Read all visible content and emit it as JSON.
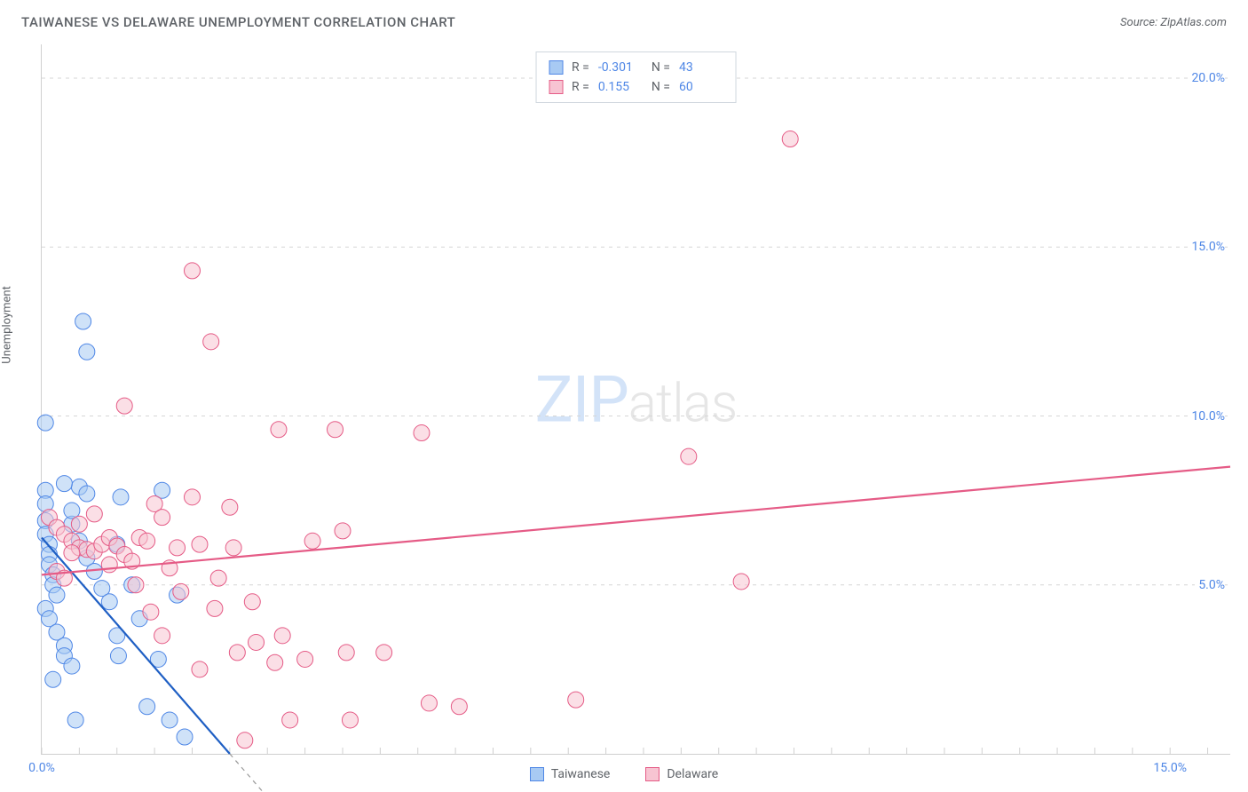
{
  "title": "TAIWANESE VS DELAWARE UNEMPLOYMENT CORRELATION CHART",
  "source_text": "Source: ZipAtlas.com",
  "ylabel": "Unemployment",
  "watermark": {
    "left": "ZIP",
    "right": "atlas"
  },
  "chart": {
    "type": "scatter",
    "background_color": "#ffffff",
    "grid_color": "#d6d6d6",
    "axis_color": "#d0d0d0",
    "label_color": "#5f6368",
    "tick_label_color": "#4f87e6",
    "xlim": [
      0,
      15.8
    ],
    "ylim": [
      0,
      21
    ],
    "x_ticks": [
      0,
      15
    ],
    "y_ticks": [
      5,
      10,
      15,
      20
    ],
    "x_tick_labels": [
      "0.0%",
      "15.0%"
    ],
    "y_tick_labels": [
      "5.0%",
      "10.0%",
      "15.0%",
      "20.0%"
    ],
    "x_minor_step": 0.5,
    "marker_radius": 9,
    "marker_opacity": 0.55,
    "reg_line_width": 2.2,
    "series": [
      {
        "name": "Taiwanese",
        "fill": "#a8caf3",
        "stroke": "#4f87e6",
        "reg_color": "#1f5fc4",
        "reg_dash_extend": true,
        "R": "-0.301",
        "N": "43",
        "regression": {
          "x0": 0,
          "y0": 6.4,
          "x1": 2.5,
          "y1": 0
        },
        "points": [
          [
            0.05,
            7.8
          ],
          [
            0.05,
            7.4
          ],
          [
            0.05,
            6.9
          ],
          [
            0.05,
            6.5
          ],
          [
            0.1,
            6.2
          ],
          [
            0.1,
            5.9
          ],
          [
            0.1,
            5.6
          ],
          [
            0.15,
            5.3
          ],
          [
            0.15,
            5.0
          ],
          [
            0.2,
            4.7
          ],
          [
            0.05,
            4.3
          ],
          [
            0.1,
            4.0
          ],
          [
            0.2,
            3.6
          ],
          [
            0.3,
            3.2
          ],
          [
            0.3,
            2.9
          ],
          [
            0.4,
            2.6
          ],
          [
            0.15,
            2.2
          ],
          [
            0.5,
            7.9
          ],
          [
            0.6,
            7.7
          ],
          [
            0.4,
            6.8
          ],
          [
            0.5,
            6.3
          ],
          [
            0.6,
            5.8
          ],
          [
            0.7,
            5.4
          ],
          [
            0.8,
            4.9
          ],
          [
            0.9,
            4.5
          ],
          [
            1.0,
            3.5
          ],
          [
            1.2,
            5.0
          ],
          [
            1.3,
            4.0
          ],
          [
            1.05,
            7.6
          ],
          [
            1.02,
            2.9
          ],
          [
            1.0,
            6.2
          ],
          [
            1.4,
            1.4
          ],
          [
            1.55,
            2.8
          ],
          [
            1.6,
            7.8
          ],
          [
            1.7,
            1.0
          ],
          [
            1.8,
            4.7
          ],
          [
            1.9,
            0.5
          ],
          [
            0.45,
            1.0
          ],
          [
            0.05,
            9.8
          ],
          [
            0.6,
            11.9
          ],
          [
            0.55,
            12.8
          ],
          [
            0.4,
            7.2
          ],
          [
            0.3,
            8.0
          ]
        ]
      },
      {
        "name": "Delaware",
        "fill": "#f7c4d2",
        "stroke": "#e55b86",
        "reg_color": "#e55b86",
        "reg_dash_extend": false,
        "R": "0.155",
        "N": "60",
        "regression": {
          "x0": 0,
          "y0": 5.3,
          "x1": 15.8,
          "y1": 8.5
        },
        "points": [
          [
            0.1,
            7.0
          ],
          [
            0.2,
            6.7
          ],
          [
            0.3,
            6.5
          ],
          [
            0.4,
            6.3
          ],
          [
            0.5,
            6.1
          ],
          [
            0.6,
            6.05
          ],
          [
            0.7,
            6.0
          ],
          [
            0.8,
            6.2
          ],
          [
            0.9,
            6.4
          ],
          [
            1.0,
            6.15
          ],
          [
            1.1,
            5.9
          ],
          [
            1.2,
            5.7
          ],
          [
            1.3,
            6.4
          ],
          [
            1.4,
            6.3
          ],
          [
            1.5,
            7.4
          ],
          [
            1.6,
            7.0
          ],
          [
            1.7,
            5.5
          ],
          [
            1.8,
            6.1
          ],
          [
            1.85,
            4.8
          ],
          [
            2.0,
            7.6
          ],
          [
            2.1,
            6.2
          ],
          [
            2.3,
            4.3
          ],
          [
            2.35,
            5.2
          ],
          [
            2.5,
            7.3
          ],
          [
            2.55,
            6.1
          ],
          [
            2.6,
            3.0
          ],
          [
            2.7,
            0.4
          ],
          [
            2.8,
            4.5
          ],
          [
            2.85,
            3.3
          ],
          [
            3.1,
            2.7
          ],
          [
            3.15,
            9.6
          ],
          [
            3.2,
            3.5
          ],
          [
            3.3,
            1.0
          ],
          [
            3.5,
            2.8
          ],
          [
            3.6,
            6.3
          ],
          [
            3.9,
            9.6
          ],
          [
            4.0,
            6.6
          ],
          [
            4.05,
            3.0
          ],
          [
            4.1,
            1.0
          ],
          [
            4.55,
            3.0
          ],
          [
            5.05,
            9.5
          ],
          [
            5.15,
            1.5
          ],
          [
            5.55,
            1.4
          ],
          [
            7.1,
            1.6
          ],
          [
            8.6,
            8.8
          ],
          [
            9.3,
            5.1
          ],
          [
            9.95,
            18.2
          ],
          [
            1.1,
            10.3
          ],
          [
            2.0,
            14.3
          ],
          [
            2.25,
            12.2
          ],
          [
            0.2,
            5.4
          ],
          [
            0.3,
            5.2
          ],
          [
            0.4,
            5.95
          ],
          [
            0.5,
            6.8
          ],
          [
            0.7,
            7.1
          ],
          [
            0.9,
            5.6
          ],
          [
            1.25,
            5.0
          ],
          [
            1.45,
            4.2
          ],
          [
            1.6,
            3.5
          ],
          [
            2.1,
            2.5
          ]
        ]
      }
    ]
  },
  "stats_labels": {
    "r": "R =",
    "n": "N ="
  },
  "bottom_legend": [
    "Taiwanese",
    "Delaware"
  ]
}
